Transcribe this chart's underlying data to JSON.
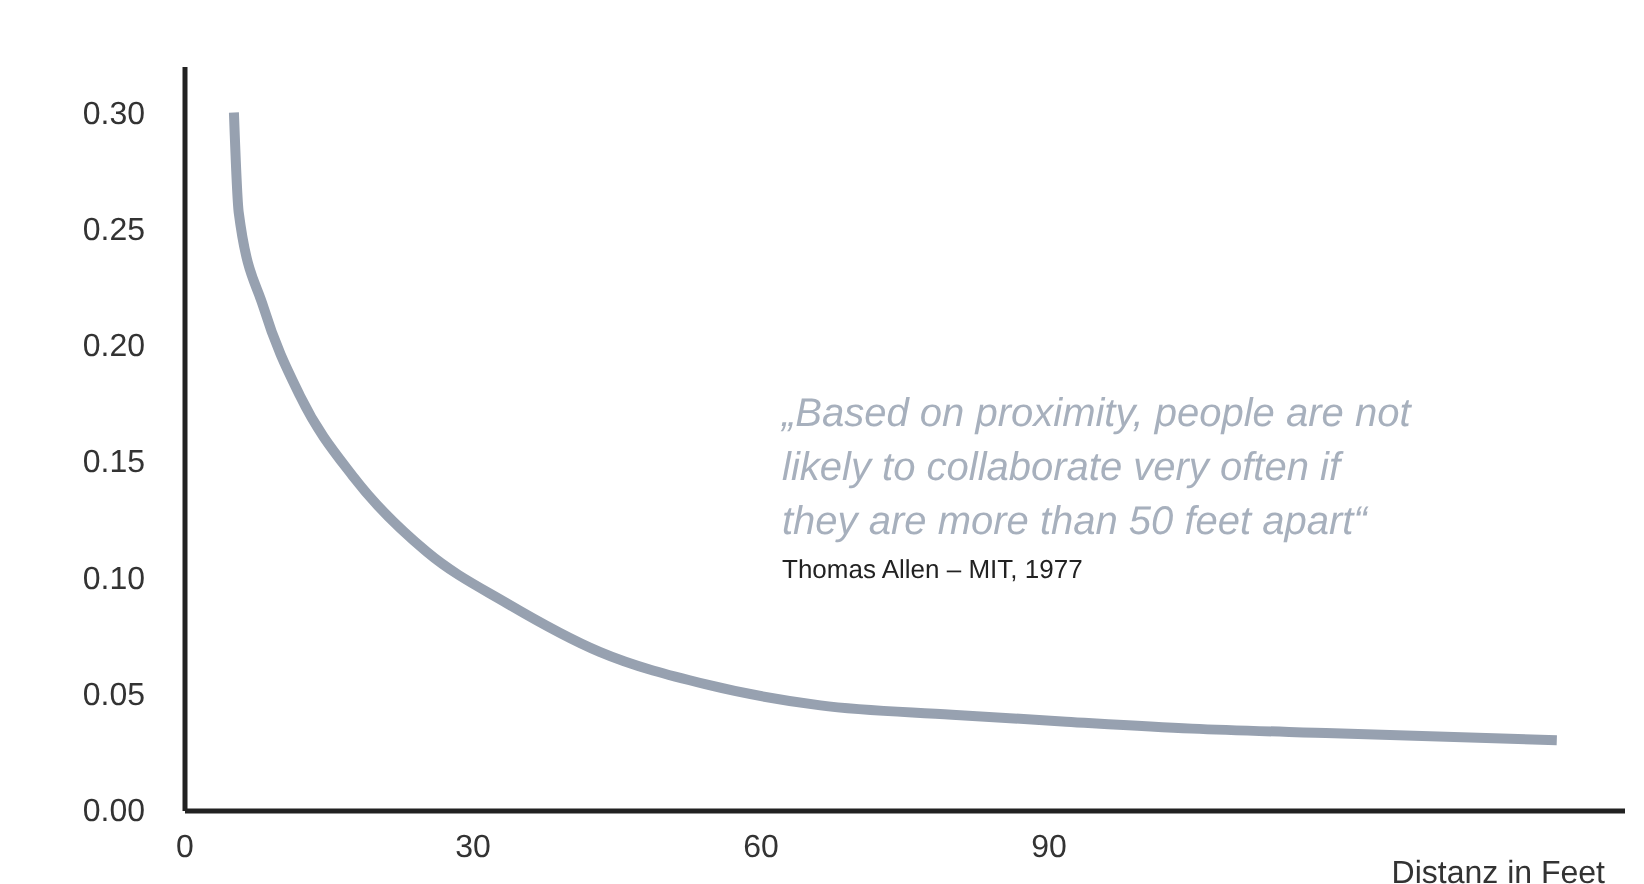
{
  "chart_data": {
    "type": "line",
    "xlabel": "Distanz in Feet",
    "annotations": [
      "„Based on proximity, people are not\nlikely to collaborate very often if\nthey are more than 50 feet apart“",
      "Thomas Allen – MIT, 1977"
    ],
    "series": [
      {
        "color": "#97a1b0",
        "x": [
          5.2,
          5.7,
          8.3,
          12.1,
          17.7,
          25.3,
          33.6,
          43.3,
          54.4,
          66.3,
          80,
          91.9,
          105,
          119.8,
          143
        ],
        "values": [
          0.3,
          0.257,
          0.216,
          0.178,
          0.143,
          0.111,
          0.089,
          0.068,
          0.054,
          0.045,
          0.041,
          0.038,
          0.035,
          0.033,
          0.03
        ]
      }
    ],
    "xlim": [
      0,
      150
    ],
    "xticks": [
      0,
      30,
      60,
      90
    ],
    "ylim": [
      0,
      0.32
    ],
    "yticks": [
      {
        "value": 0,
        "label": "0.00"
      },
      0.05,
      {
        "value": 0.1,
        "label": "0.10"
      },
      0.15,
      {
        "value": 0.2,
        "label": "0.20"
      },
      0.25,
      {
        "value": 0.3,
        "label": "0.30"
      }
    ],
    "grid": false,
    "marker": "none",
    "line_style": "solid"
  }
}
